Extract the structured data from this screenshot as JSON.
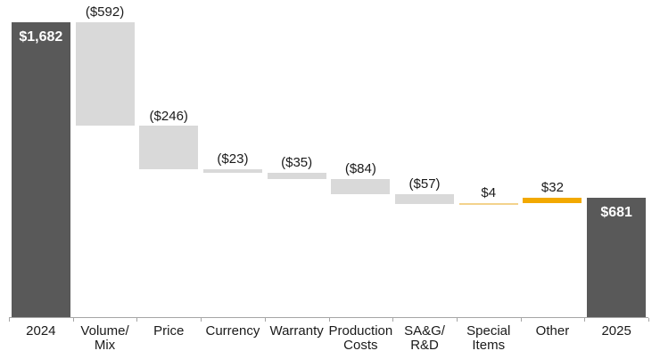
{
  "chart_data": {
    "type": "waterfall-bar",
    "title": "",
    "xlabel": "",
    "ylabel": "",
    "ylim": [
      0,
      1682
    ],
    "grid": false,
    "legend": "none",
    "axis_color": "#A6A6A6",
    "tick_color": "#A6A6A6",
    "value_label_color": "#1A1A1A",
    "inside_label_color": "#FFFFFF",
    "colors": {
      "total_bar": "#595959",
      "decrease_bar": "#D9D9D9",
      "increase_small_bar": "#F3D28C",
      "increase_bar": "#F2A900"
    },
    "categories": [
      "2024",
      "Volume/\nMix",
      "Price",
      "Currency",
      "Warranty",
      "Production\nCosts",
      "SA&G/\nR&D",
      "Special\nItems",
      "Other",
      "2025"
    ],
    "items": [
      {
        "category": "2024",
        "value": 1682,
        "display": "$1,682",
        "kind": "total",
        "color": "#595959",
        "label_position": "inside"
      },
      {
        "category": "Volume/\nMix",
        "value": -592,
        "display": "($592)",
        "kind": "delta",
        "color": "#D9D9D9",
        "label_position": "above"
      },
      {
        "category": "Price",
        "value": -246,
        "display": "($246)",
        "kind": "delta",
        "color": "#D9D9D9",
        "label_position": "above"
      },
      {
        "category": "Currency",
        "value": -23,
        "display": "($23)",
        "kind": "delta",
        "color": "#D9D9D9",
        "label_position": "above"
      },
      {
        "category": "Warranty",
        "value": -35,
        "display": "($35)",
        "kind": "delta",
        "color": "#D9D9D9",
        "label_position": "above"
      },
      {
        "category": "Production\nCosts",
        "value": -84,
        "display": "($84)",
        "kind": "delta",
        "color": "#D9D9D9",
        "label_position": "above"
      },
      {
        "category": "SA&G/\nR&D",
        "value": -57,
        "display": "($57)",
        "kind": "delta",
        "color": "#D9D9D9",
        "label_position": "above"
      },
      {
        "category": "Special\nItems",
        "value": 4,
        "display": "$4",
        "kind": "delta",
        "color": "#F3D28C",
        "label_position": "above"
      },
      {
        "category": "Other",
        "value": 32,
        "display": "$32",
        "kind": "delta",
        "color": "#F2A900",
        "label_position": "above"
      },
      {
        "category": "2025",
        "value": 681,
        "display": "$681",
        "kind": "total",
        "color": "#595959",
        "label_position": "inside"
      }
    ]
  }
}
